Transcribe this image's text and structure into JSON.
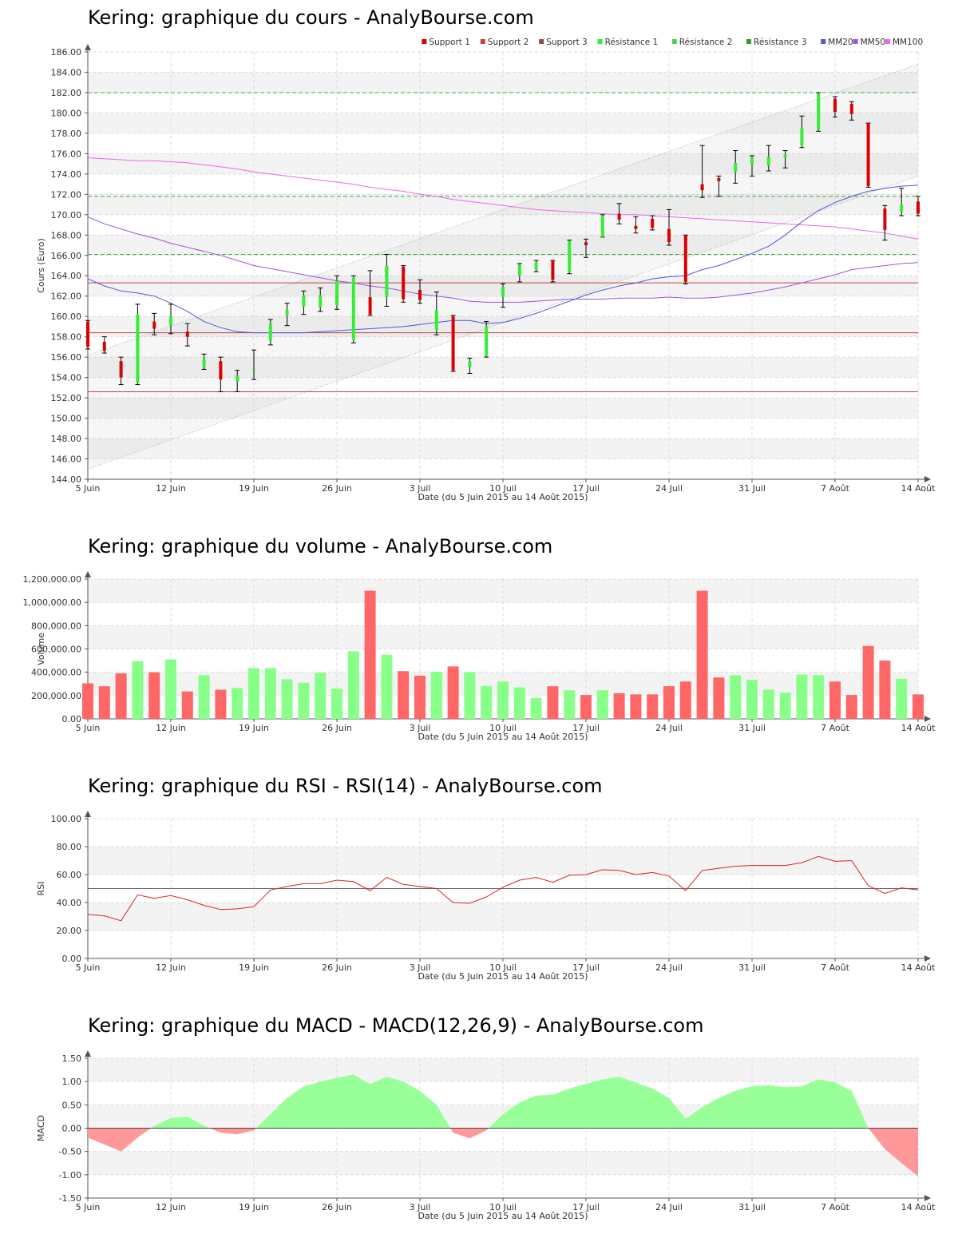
{
  "titles": {
    "price": "Kering: graphique du cours - AnalyBourse.com",
    "volume": "Kering: graphique du volume - AnalyBourse.com",
    "rsi": "Kering: graphique du RSI - RSI(14) - AnalyBourse.com",
    "macd": "Kering: graphique du MACD - MACD(12,26,9) - AnalyBourse.com"
  },
  "colors": {
    "up": "#33ee33",
    "down": "#dd0000",
    "vol_up": "#88ff88",
    "vol_down": "#ff6666",
    "support": "#bb4444",
    "resistance": "#44aa44",
    "mm20": "#5555dd",
    "mm50": "#9955dd",
    "mm100": "#ee66ee",
    "rsi_line": "#dd2222",
    "macd_pos": "#99ff99",
    "macd_neg": "#ff9999"
  },
  "chart_data": [
    {
      "name": "price",
      "type": "candlestick",
      "title": "Kering: graphique du cours - AnalyBourse.com",
      "xlabel": "Date (du 5 Juin 2015 au 14 Août 2015)",
      "ylabel": "Cours (Euro)",
      "ylim": [
        144,
        186
      ],
      "ytick_step": 2,
      "ytick_decimals": 2,
      "grid": true,
      "legend_position": "top-right",
      "x_tick_labels": [
        "5 Juin",
        "12 Juin",
        "19 Juin",
        "26 Juin",
        "3 Juil",
        "10 Juil",
        "17 Juil",
        "24 Juil",
        "31 Juil",
        "7 Août",
        "14 Août"
      ],
      "x_tick_index": [
        0,
        5,
        10,
        15,
        20,
        25,
        30,
        35,
        40,
        45,
        50
      ],
      "legend": [
        "Support 1",
        "Support 2",
        "Support 3",
        "Résistance 1",
        "Résistance 2",
        "Résistance 3",
        "MM20",
        "MM50",
        "MM100"
      ],
      "candles": [
        {
          "o": 159.5,
          "h": 159.6,
          "l": 156.8,
          "c": 157.0
        },
        {
          "o": 157.5,
          "h": 158.0,
          "l": 156.4,
          "c": 156.6
        },
        {
          "o": 155.6,
          "h": 156.0,
          "l": 153.3,
          "c": 154.0
        },
        {
          "o": 153.5,
          "h": 161.2,
          "l": 153.3,
          "c": 160.2
        },
        {
          "o": 159.5,
          "h": 160.3,
          "l": 158.2,
          "c": 158.8
        },
        {
          "o": 159.1,
          "h": 161.2,
          "l": 158.3,
          "c": 160.0
        },
        {
          "o": 158.5,
          "h": 159.3,
          "l": 157.1,
          "c": 158.0
        },
        {
          "o": 155.0,
          "h": 156.3,
          "l": 154.8,
          "c": 155.8
        },
        {
          "o": 155.6,
          "h": 156.0,
          "l": 152.6,
          "c": 153.8
        },
        {
          "o": 153.6,
          "h": 154.7,
          "l": 152.6,
          "c": 154.2
        },
        {
          "o": 154.7,
          "h": 156.7,
          "l": 153.8,
          "c": 154.8
        },
        {
          "o": 157.6,
          "h": 159.7,
          "l": 157.2,
          "c": 159.3
        },
        {
          "o": 160.1,
          "h": 161.3,
          "l": 159.1,
          "c": 160.6
        },
        {
          "o": 161.0,
          "h": 162.5,
          "l": 160.2,
          "c": 162.1
        },
        {
          "o": 160.9,
          "h": 162.8,
          "l": 160.5,
          "c": 162.1
        },
        {
          "o": 161.1,
          "h": 164.0,
          "l": 160.7,
          "c": 163.5
        },
        {
          "o": 157.7,
          "h": 164.0,
          "l": 157.4,
          "c": 163.8
        },
        {
          "o": 161.9,
          "h": 164.5,
          "l": 160.1,
          "c": 160.2
        },
        {
          "o": 161.9,
          "h": 166.1,
          "l": 161.0,
          "c": 165.0
        },
        {
          "o": 164.9,
          "h": 165.0,
          "l": 161.4,
          "c": 161.7
        },
        {
          "o": 162.6,
          "h": 163.6,
          "l": 161.3,
          "c": 161.6
        },
        {
          "o": 158.7,
          "h": 162.4,
          "l": 158.2,
          "c": 160.6
        },
        {
          "o": 160.0,
          "h": 160.1,
          "l": 154.6,
          "c": 154.7
        },
        {
          "o": 155.0,
          "h": 155.9,
          "l": 154.4,
          "c": 155.6
        },
        {
          "o": 156.1,
          "h": 159.5,
          "l": 156.0,
          "c": 159.0
        },
        {
          "o": 161.9,
          "h": 163.2,
          "l": 160.9,
          "c": 162.9
        },
        {
          "o": 164.0,
          "h": 165.2,
          "l": 163.4,
          "c": 165.1
        },
        {
          "o": 164.6,
          "h": 165.5,
          "l": 164.4,
          "c": 165.3
        },
        {
          "o": 165.5,
          "h": 165.5,
          "l": 163.4,
          "c": 163.6
        },
        {
          "o": 164.4,
          "h": 167.5,
          "l": 164.2,
          "c": 167.4
        },
        {
          "o": 167.3,
          "h": 167.6,
          "l": 165.8,
          "c": 167.0
        },
        {
          "o": 167.8,
          "h": 170.0,
          "l": 167.8,
          "c": 169.9
        },
        {
          "o": 170.1,
          "h": 171.1,
          "l": 169.1,
          "c": 169.5
        },
        {
          "o": 168.9,
          "h": 169.8,
          "l": 168.2,
          "c": 168.6
        },
        {
          "o": 169.6,
          "h": 169.9,
          "l": 168.5,
          "c": 168.7
        },
        {
          "o": 168.6,
          "h": 170.5,
          "l": 167.0,
          "c": 167.3
        },
        {
          "o": 168.0,
          "h": 168.0,
          "l": 163.2,
          "c": 163.4
        },
        {
          "o": 173.0,
          "h": 176.8,
          "l": 171.7,
          "c": 172.4
        },
        {
          "o": 173.6,
          "h": 173.8,
          "l": 171.8,
          "c": 173.3
        },
        {
          "o": 174.2,
          "h": 176.3,
          "l": 173.1,
          "c": 175.1
        },
        {
          "o": 174.9,
          "h": 175.8,
          "l": 173.8,
          "c": 175.6
        },
        {
          "o": 174.8,
          "h": 176.8,
          "l": 174.3,
          "c": 175.7
        },
        {
          "o": 175.6,
          "h": 176.3,
          "l": 174.6,
          "c": 175.9
        },
        {
          "o": 176.8,
          "h": 179.7,
          "l": 176.6,
          "c": 178.5
        },
        {
          "o": 178.4,
          "h": 182.0,
          "l": 178.2,
          "c": 181.9
        },
        {
          "o": 181.4,
          "h": 181.6,
          "l": 179.6,
          "c": 180.1
        },
        {
          "o": 180.9,
          "h": 181.1,
          "l": 179.3,
          "c": 179.9
        },
        {
          "o": 179.0,
          "h": 179.0,
          "l": 172.7,
          "c": 172.8
        },
        {
          "o": 170.6,
          "h": 170.9,
          "l": 167.5,
          "c": 168.5
        },
        {
          "o": 170.3,
          "h": 172.6,
          "l": 169.9,
          "c": 171.0
        },
        {
          "o": 171.3,
          "h": 171.8,
          "l": 169.9,
          "c": 170.1
        }
      ],
      "support": [
        152.6,
        158.4,
        163.3
      ],
      "resistance": [
        166.1,
        171.8,
        182.0
      ],
      "channel_lower": [
        145.0,
        173.8
      ],
      "channel_upper": [
        156.2,
        184.8
      ],
      "mm20": [
        163.7,
        163.0,
        162.5,
        162.3,
        162.0,
        161.3,
        160.5,
        159.5,
        158.9,
        158.5,
        158.4,
        158.4,
        158.4,
        158.4,
        158.5,
        158.6,
        158.7,
        158.8,
        158.9,
        159.0,
        159.2,
        159.4,
        159.6,
        159.6,
        159.3,
        159.4,
        159.8,
        160.3,
        160.9,
        161.5,
        162.1,
        162.6,
        163.0,
        163.3,
        163.7,
        163.9,
        164.0,
        164.6,
        165.0,
        165.6,
        166.2,
        166.9,
        168.0,
        169.3,
        170.4,
        171.2,
        171.8,
        172.3,
        172.6,
        172.8,
        172.9
      ],
      "mm50": [
        169.8,
        169.1,
        168.6,
        168.1,
        167.7,
        167.2,
        166.8,
        166.4,
        166.0,
        165.5,
        165.0,
        164.7,
        164.4,
        164.1,
        163.8,
        163.5,
        163.3,
        163.0,
        162.8,
        162.5,
        162.2,
        162.0,
        161.8,
        161.5,
        161.4,
        161.4,
        161.4,
        161.5,
        161.6,
        161.7,
        161.7,
        161.7,
        161.8,
        161.8,
        161.8,
        161.9,
        161.8,
        161.8,
        161.9,
        162.1,
        162.3,
        162.6,
        162.9,
        163.3,
        163.7,
        164.1,
        164.6,
        164.8,
        165.0,
        165.2,
        165.3
      ],
      "mm100": [
        175.6,
        175.5,
        175.4,
        175.3,
        175.3,
        175.2,
        175.1,
        174.9,
        174.7,
        174.5,
        174.2,
        174.0,
        173.8,
        173.6,
        173.4,
        173.2,
        173.0,
        172.7,
        172.5,
        172.3,
        172.0,
        171.8,
        171.5,
        171.3,
        171.1,
        170.9,
        170.7,
        170.5,
        170.4,
        170.3,
        170.2,
        170.1,
        170.0,
        170.0,
        169.9,
        169.8,
        169.7,
        169.6,
        169.5,
        169.4,
        169.3,
        169.2,
        169.1,
        169.0,
        168.9,
        168.8,
        168.6,
        168.4,
        168.2,
        167.9,
        167.6
      ]
    },
    {
      "name": "volume",
      "type": "bar",
      "title": "Kering: graphique du volume - AnalyBourse.com",
      "xlabel": "Date (du 5 Juin 2015 au 14 Août 2015)",
      "ylabel": "Volume",
      "ylim": [
        0,
        1200000
      ],
      "ytick_step": 200000,
      "x_tick_labels": [
        "5 Juin",
        "12 Juin",
        "19 Juin",
        "26 Juin",
        "3 Juil",
        "10 Juil",
        "17 Juil",
        "24 Juil",
        "31 Juil",
        "7 Août",
        "14 Août"
      ],
      "x_tick_index": [
        0,
        5,
        10,
        15,
        20,
        25,
        30,
        35,
        40,
        45,
        50
      ],
      "values": [
        305000,
        280000,
        390000,
        495000,
        400000,
        510000,
        235000,
        375000,
        250000,
        265000,
        435000,
        435000,
        340000,
        310000,
        395000,
        258000,
        580000,
        1100000,
        550000,
        410000,
        370000,
        405000,
        450000,
        400000,
        280000,
        320000,
        270000,
        180000,
        280000,
        245000,
        205000,
        245000,
        220000,
        210000,
        210000,
        280000,
        320000,
        1100000,
        355000,
        375000,
        335000,
        250000,
        225000,
        380000,
        375000,
        320000,
        205000,
        625000,
        500000,
        345000,
        210000
      ],
      "up": [
        0,
        0,
        0,
        1,
        0,
        1,
        0,
        1,
        0,
        1,
        1,
        1,
        1,
        1,
        1,
        1,
        1,
        0,
        1,
        0,
        0,
        1,
        0,
        1,
        1,
        1,
        1,
        1,
        0,
        1,
        0,
        1,
        0,
        0,
        0,
        0,
        0,
        0,
        0,
        1,
        1,
        1,
        1,
        1,
        1,
        0,
        0,
        0,
        0,
        1,
        0
      ]
    },
    {
      "name": "rsi",
      "type": "line",
      "title": "Kering: graphique du RSI - RSI(14) - AnalyBourse.com",
      "xlabel": "Date (du 5 Juin 2015 au 14 Août 2015)",
      "ylabel": "RSI",
      "ylim": [
        0,
        100
      ],
      "ytick_step": 20,
      "reference_line": 50,
      "x_tick_labels": [
        "5 Juin",
        "12 Juin",
        "19 Juin",
        "26 Juin",
        "3 Juil",
        "10 Juil",
        "17 Juil",
        "24 Juil",
        "31 Juil",
        "7 Août",
        "14 Août"
      ],
      "x_tick_index": [
        0,
        5,
        10,
        15,
        20,
        25,
        30,
        35,
        40,
        45,
        50
      ],
      "values": [
        31.5,
        30.5,
        27.0,
        45.5,
        43.0,
        45.0,
        42.0,
        38.0,
        35.0,
        35.5,
        37.0,
        49.0,
        51.5,
        53.5,
        53.5,
        56.0,
        55.0,
        48.5,
        58.0,
        53.0,
        51.5,
        50.0,
        40.0,
        39.5,
        44.0,
        51.0,
        56.0,
        58.0,
        54.5,
        59.5,
        60.0,
        63.5,
        63.0,
        60.0,
        61.5,
        59.0,
        48.5,
        63.0,
        64.5,
        66.0,
        66.5,
        66.5,
        66.5,
        68.5,
        73.0,
        69.5,
        70.0,
        52.0,
        46.5,
        50.5,
        49.0
      ]
    },
    {
      "name": "macd",
      "type": "area",
      "title": "Kering: graphique du MACD - MACD(12,26,9) - AnalyBourse.com",
      "xlabel": "Date (du 5 Juin 2015 au 14 Août 2015)",
      "ylabel": "MACD",
      "ylim": [
        -1.5,
        1.5
      ],
      "ytick_step": 0.5,
      "x_tick_labels": [
        "5 Juin",
        "12 Juin",
        "19 Juin",
        "26 Juin",
        "3 Juil",
        "10 Juil",
        "17 Juil",
        "24 Juil",
        "31 Juil",
        "7 Août",
        "14 Août"
      ],
      "x_tick_index": [
        0,
        5,
        10,
        15,
        20,
        25,
        30,
        35,
        40,
        45,
        50
      ],
      "values": [
        -0.2,
        -0.35,
        -0.5,
        -0.2,
        0.05,
        0.22,
        0.25,
        0.05,
        -0.1,
        -0.13,
        -0.05,
        0.3,
        0.65,
        0.9,
        1.0,
        1.08,
        1.15,
        0.95,
        1.1,
        1.0,
        0.8,
        0.5,
        -0.1,
        -0.22,
        -0.05,
        0.3,
        0.55,
        0.7,
        0.72,
        0.85,
        0.95,
        1.05,
        1.1,
        0.98,
        0.85,
        0.65,
        0.2,
        0.45,
        0.65,
        0.8,
        0.9,
        0.92,
        0.88,
        0.9,
        1.05,
        0.98,
        0.8,
        0.0,
        -0.45,
        -0.75,
        -1.03
      ]
    }
  ]
}
